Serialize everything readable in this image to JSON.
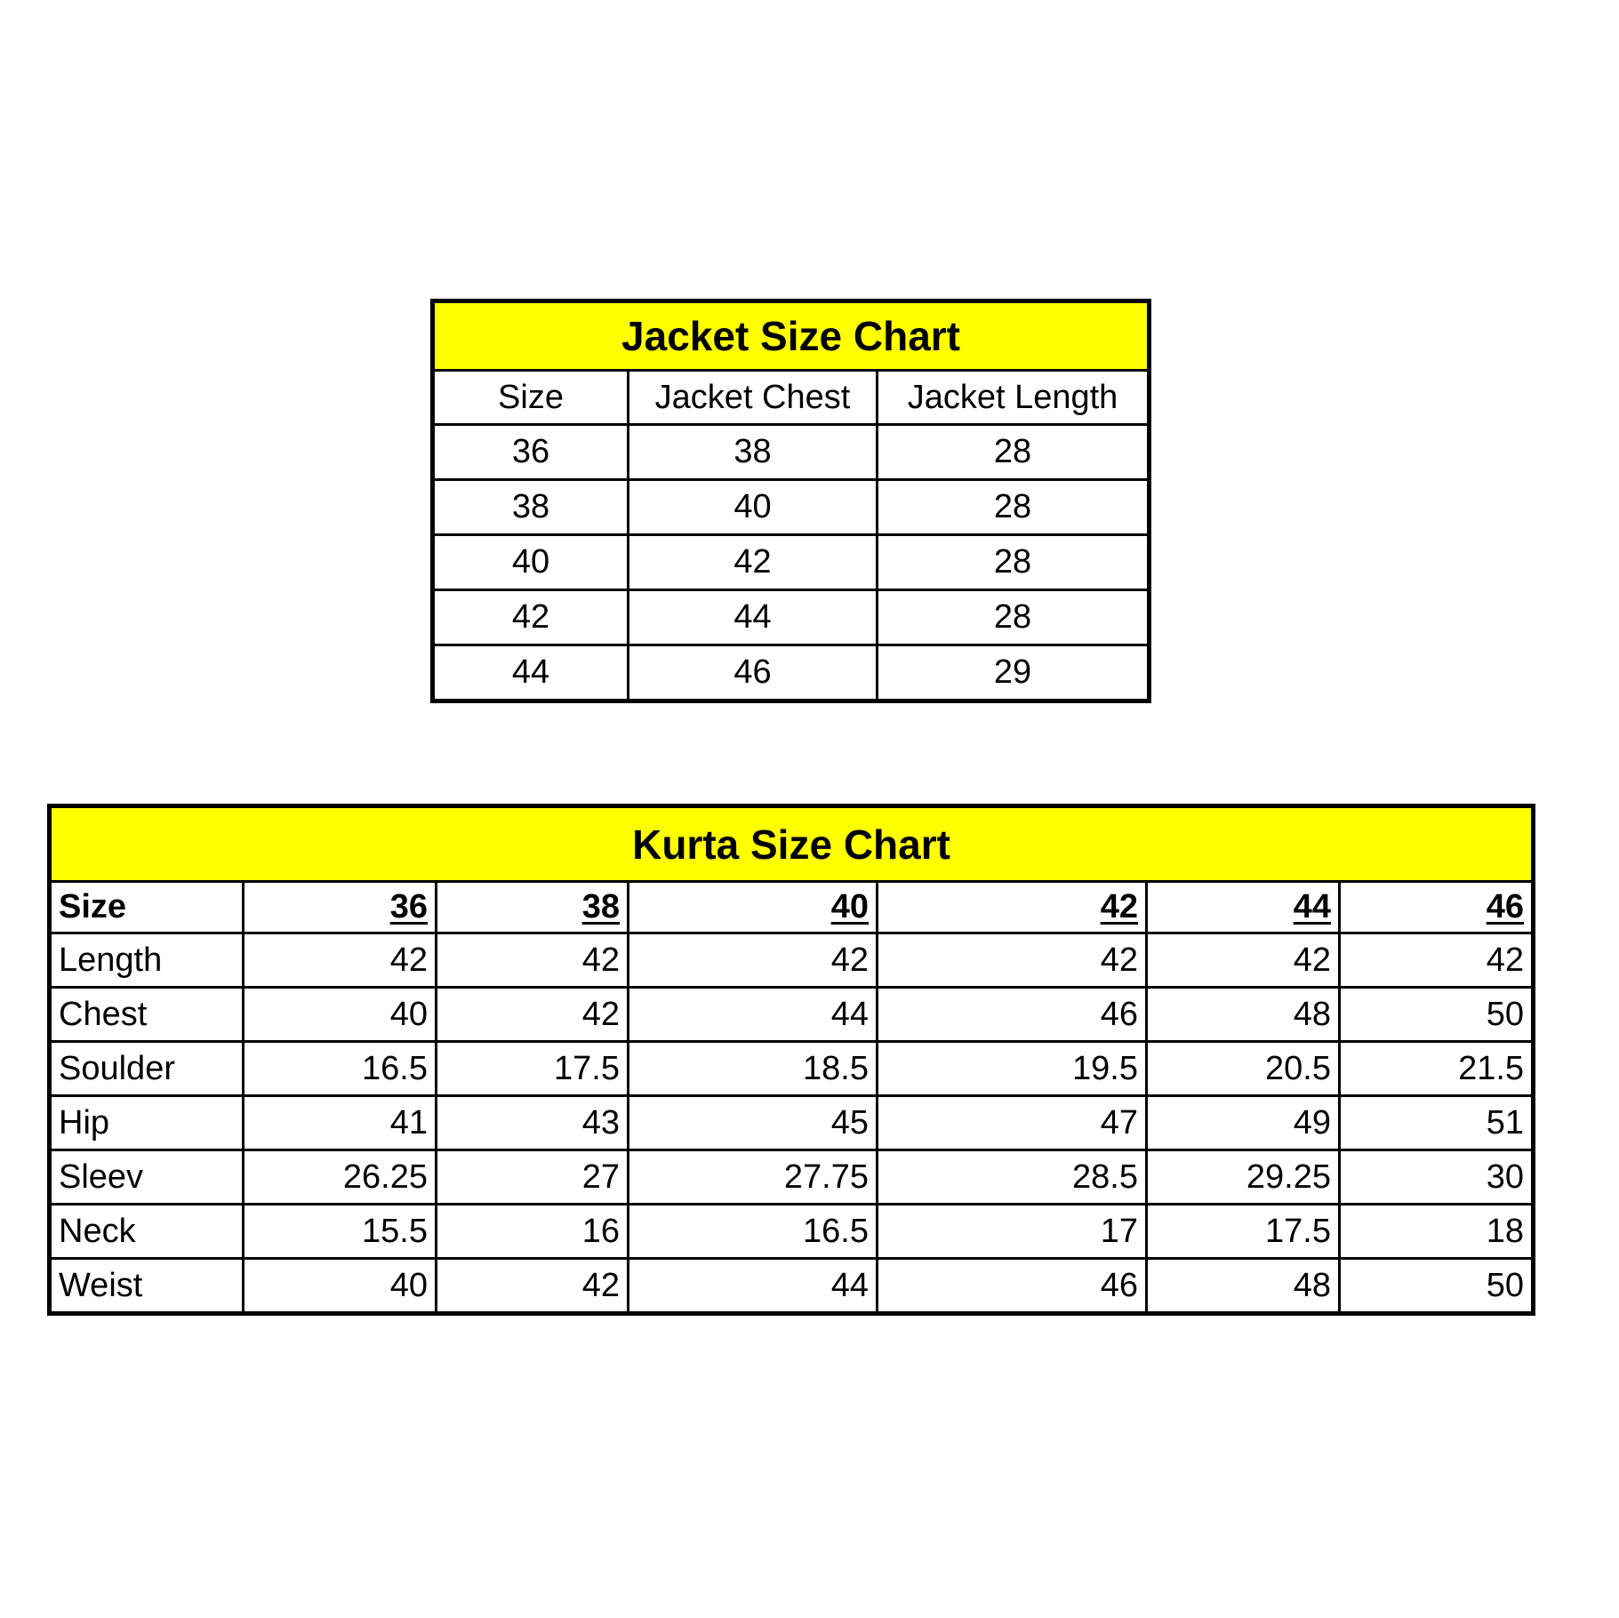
{
  "jacket": {
    "title": "Jacket Size Chart",
    "headers": [
      "Size",
      "Jacket Chest",
      "Jacket Length"
    ],
    "rows": [
      [
        "36",
        "38",
        "28"
      ],
      [
        "38",
        "40",
        "28"
      ],
      [
        "40",
        "42",
        "28"
      ],
      [
        "42",
        "44",
        "28"
      ],
      [
        "44",
        "46",
        "29"
      ]
    ]
  },
  "kurta": {
    "title": "Kurta Size Chart",
    "header": [
      "Size",
      "36",
      "38",
      "40",
      "42",
      "44",
      "46"
    ],
    "rows": [
      [
        "Length",
        "42",
        "42",
        "42",
        "42",
        "42",
        "42"
      ],
      [
        "Chest",
        "40",
        "42",
        "44",
        "46",
        "48",
        "50"
      ],
      [
        "Soulder",
        "16.5",
        "17.5",
        "18.5",
        "19.5",
        "20.5",
        "21.5"
      ],
      [
        "Hip",
        "41",
        "43",
        "45",
        "47",
        "49",
        "51"
      ],
      [
        "Sleev",
        "26.25",
        "27",
        "27.75",
        "28.5",
        "29.25",
        "30"
      ],
      [
        "Neck",
        "15.5",
        "16",
        "16.5",
        "17",
        "17.5",
        "18"
      ],
      [
        "Weist",
        "40",
        "42",
        "44",
        "46",
        "48",
        "50"
      ]
    ]
  },
  "colors": {
    "title_background": "#ffff00",
    "border": "#000000"
  }
}
